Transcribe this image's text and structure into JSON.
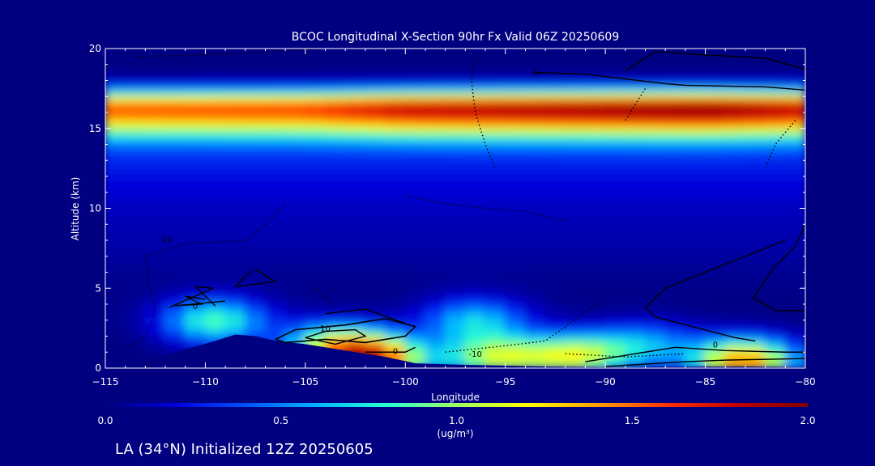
{
  "chart_data": {
    "type": "heatmap",
    "title": "BCOC Longitudinal X-Section 90hr  Fx Valid 06Z 20250609",
    "xlabel": "Longitude",
    "ylabel": "Altitude (km)",
    "xlim": [
      -115,
      -80
    ],
    "ylim": [
      0,
      20
    ],
    "xticks": [
      -115,
      -110,
      -105,
      -100,
      -95,
      -90,
      -85,
      -80
    ],
    "yticks": [
      0,
      5,
      10,
      15,
      20
    ],
    "colorbar": {
      "min": 0.0,
      "max": 2.0,
      "ticks": [
        "0.0",
        "0.5",
        "1.0",
        "1.5",
        "2.0"
      ],
      "unit": "(ug/m³)",
      "colors": [
        "#000080",
        "#0000dc",
        "#0050ff",
        "#00b4ff",
        "#28ffd4",
        "#a0ff60",
        "#ffff00",
        "#ffa000",
        "#ff3000",
        "#c00000",
        "#800000"
      ]
    },
    "stratospheric_layer": {
      "peak_altitude_km": 16.3,
      "peak_value": [
        [
          -115,
          1.5
        ],
        [
          -105,
          1.55
        ],
        [
          -100,
          1.75
        ],
        [
          -95,
          1.8
        ],
        [
          -90,
          1.85
        ],
        [
          -85,
          1.9
        ],
        [
          -80,
          1.75
        ]
      ]
    },
    "lower_plumes": [
      {
        "lon": -109.5,
        "alt_km": 3.0,
        "value": 0.85
      },
      {
        "lon": -103.5,
        "alt_km": 1.5,
        "value": 0.95
      },
      {
        "lon": -101.5,
        "alt_km": 0.6,
        "value": 1.5
      },
      {
        "lon": -96.5,
        "alt_km": 3.0,
        "value": 0.65
      },
      {
        "lon": -95.5,
        "alt_km": 0.7,
        "value": 1.0
      },
      {
        "lon": -91.5,
        "alt_km": 0.8,
        "value": 1.05
      },
      {
        "lon": -88,
        "alt_km": 1.5,
        "value": 0.55
      },
      {
        "lon": -83,
        "alt_km": 0.5,
        "value": 1.45
      }
    ],
    "contour_labels": [
      {
        "lon": -110.5,
        "alt_km": 3.9,
        "text": "0"
      },
      {
        "lon": -112,
        "alt_km": 8.1,
        "text": "-10"
      },
      {
        "lon": -104,
        "alt_km": 2.5,
        "text": "10"
      },
      {
        "lon": -100.5,
        "alt_km": 1.1,
        "text": "0"
      },
      {
        "lon": -96.5,
        "alt_km": 0.9,
        "text": "-10"
      },
      {
        "lon": -84.5,
        "alt_km": 1.5,
        "text": "0"
      },
      {
        "lon": -93.5,
        "alt_km": 18.5,
        "text": "0"
      }
    ]
  },
  "footer": {
    "location_text": "LA (34°N) Initialized 12Z 20250605"
  }
}
